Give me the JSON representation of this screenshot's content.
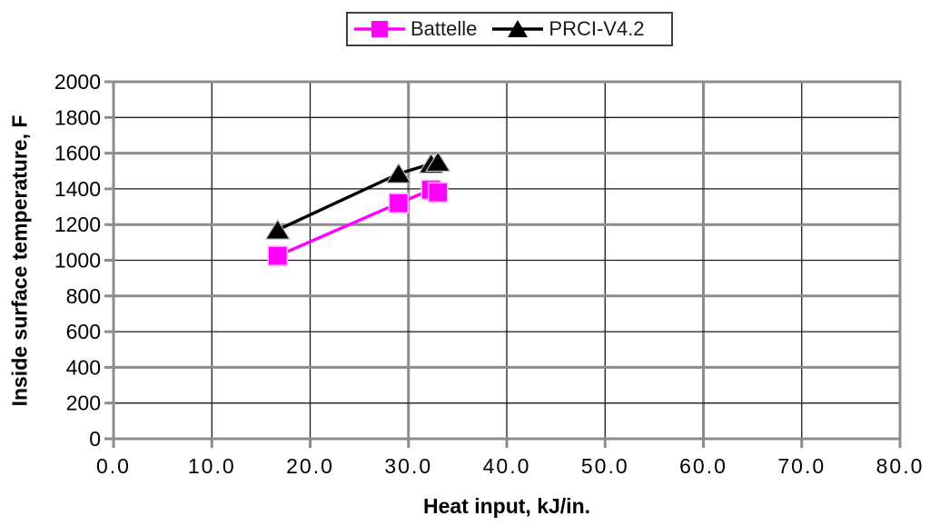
{
  "chart_data": {
    "type": "line",
    "title": "",
    "xlabel": "Heat input, kJ/in.",
    "ylabel": "Inside surface temperature, F",
    "xlim": [
      0,
      80
    ],
    "ylim": [
      0,
      2000
    ],
    "x_tick_values": [
      0,
      10,
      20,
      30,
      40,
      50,
      60,
      70,
      80
    ],
    "x_tick_labels": [
      "0.0",
      "10.0",
      "20.0",
      "30.0",
      "40.0",
      "50.0",
      "60.0",
      "70.0",
      "80.0"
    ],
    "y_tick_values": [
      0,
      200,
      400,
      600,
      800,
      1000,
      1200,
      1400,
      1600,
      1800,
      2000
    ],
    "y_tick_labels": [
      "0",
      "200",
      "400",
      "600",
      "800",
      "1000",
      "1200",
      "1400",
      "1600",
      "1800",
      "2000"
    ],
    "grid": true,
    "legend_position": "top-center",
    "axis_color": "#8c8c8c",
    "series": [
      {
        "name": "Battelle",
        "color": "#ff00ff",
        "marker": "square",
        "points": [
          [
            16.7,
            1025
          ],
          [
            29.0,
            1320
          ],
          [
            32.3,
            1395
          ],
          [
            33.0,
            1380
          ]
        ]
      },
      {
        "name": "PRCI-V4.2",
        "color": "#000000",
        "marker": "triangle",
        "points": [
          [
            16.7,
            1170
          ],
          [
            29.0,
            1485
          ],
          [
            32.3,
            1540
          ],
          [
            33.0,
            1550
          ]
        ]
      }
    ]
  }
}
